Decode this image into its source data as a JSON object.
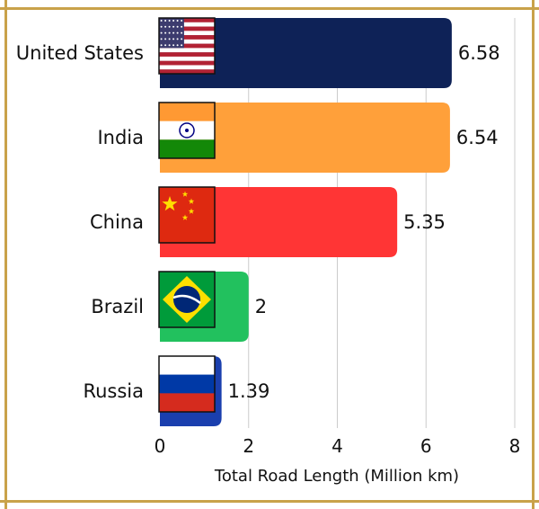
{
  "chart_data": {
    "type": "bar",
    "orientation": "horizontal",
    "categories": [
      "United States",
      "India",
      "China",
      "Brazil",
      "Russia"
    ],
    "values": [
      6.58,
      6.54,
      5.35,
      2,
      1.39
    ],
    "value_labels": [
      "6.58",
      "6.54",
      "5.35",
      "2",
      "1.39"
    ],
    "bar_colors": [
      "#0e2257",
      "#ffa03a",
      "#ff3535",
      "#22c15e",
      "#1a3fae"
    ],
    "flags": [
      "us-flag",
      "india-flag",
      "china-flag",
      "brazil-flag",
      "russia-flag"
    ],
    "xlabel": "Total Road Length (Million km)",
    "ylabel": "",
    "xlim": [
      0,
      8
    ],
    "xticks": [
      "0",
      "2",
      "4",
      "6",
      "8"
    ],
    "grid": "vertical",
    "border_color": "#c9a24a"
  }
}
